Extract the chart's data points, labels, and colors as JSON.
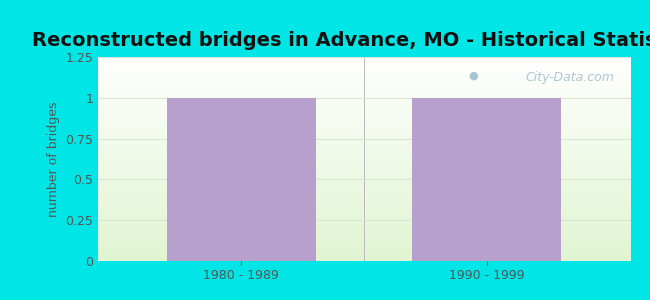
{
  "title": "Reconstructed bridges in Advance, MO - Historical Statistics",
  "categories": [
    "1980 - 1989",
    "1990 - 1999"
  ],
  "values": [
    1,
    1
  ],
  "bar_color": "#b8a0cc",
  "ylabel": "number of bridges",
  "ylim": [
    0,
    1.25
  ],
  "yticks": [
    0,
    0.25,
    0.5,
    0.75,
    1,
    1.25
  ],
  "ytick_labels": [
    "0",
    "0.25",
    "0.5",
    "0.75",
    "1",
    "1.25"
  ],
  "background_outer": "#00e5e5",
  "background_plot": "#e8f2e0",
  "title_fontsize": 14,
  "ylabel_fontsize": 9,
  "tick_fontsize": 9,
  "bar_width": 0.28,
  "title_color": "#111111",
  "tick_color": "#555555",
  "ylabel_color": "#555555",
  "watermark": "City-Data.com",
  "grid_color": "#d8e8d0",
  "bar_positions": [
    0.27,
    0.73
  ]
}
